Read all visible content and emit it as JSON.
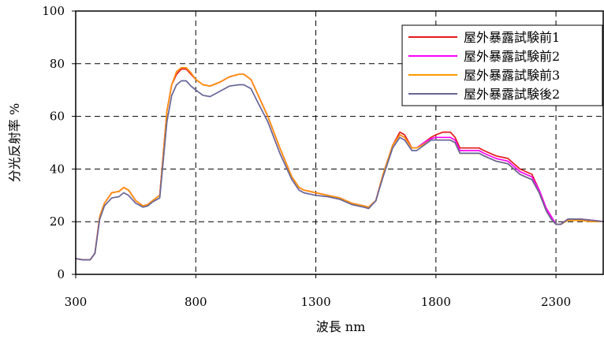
{
  "chart_data": {
    "type": "line",
    "xlabel": "波長 nm",
    "ylabel": "分光反射率 %",
    "xlim": [
      300,
      2500
    ],
    "ylim": [
      0,
      100
    ],
    "xticks": [
      300,
      800,
      1300,
      1800,
      2300
    ],
    "yticks": [
      0,
      20,
      40,
      60,
      80,
      100
    ],
    "grid": true,
    "legend_position": "top-right",
    "x": [
      300,
      330,
      360,
      380,
      400,
      420,
      450,
      480,
      500,
      520,
      550,
      580,
      600,
      620,
      650,
      680,
      700,
      720,
      740,
      760,
      780,
      800,
      830,
      860,
      900,
      940,
      980,
      1000,
      1030,
      1060,
      1100,
      1150,
      1200,
      1230,
      1250,
      1300,
      1350,
      1400,
      1450,
      1500,
      1520,
      1550,
      1580,
      1620,
      1650,
      1670,
      1700,
      1720,
      1750,
      1780,
      1800,
      1830,
      1860,
      1880,
      1900,
      1950,
      1980,
      2000,
      2050,
      2100,
      2150,
      2200,
      2230,
      2260,
      2280,
      2300,
      2320,
      2350,
      2400,
      2450,
      2500
    ],
    "series": [
      {
        "name": "屋外暴露試験前1",
        "color": "#e41a1c",
        "values": [
          6,
          5.5,
          5.5,
          8,
          22,
          27,
          31,
          31.5,
          33,
          32,
          28,
          26,
          26.5,
          28,
          30,
          62,
          72,
          76,
          78,
          78,
          76,
          74,
          72,
          71.5,
          73,
          75,
          76,
          76,
          74,
          68,
          60,
          48,
          37,
          33,
          32,
          31,
          30,
          29,
          27,
          26,
          25.5,
          28,
          38,
          49,
          54,
          53,
          48,
          48,
          50,
          52,
          53,
          54,
          54,
          52,
          48,
          48,
          48,
          47,
          45,
          44,
          40,
          38,
          32,
          25,
          22,
          19,
          19,
          21,
          21,
          20.5,
          20
        ]
      },
      {
        "name": "屋外暴露試験前2",
        "color": "#ff00ff",
        "values": [
          6,
          5.5,
          5.5,
          8,
          22,
          27,
          31,
          31.5,
          33,
          32,
          28,
          26,
          26.5,
          28,
          30,
          62,
          72,
          77,
          78.5,
          78.5,
          76.5,
          74,
          72,
          71.5,
          73,
          75,
          76,
          76,
          74,
          68,
          60,
          48,
          37,
          33,
          32,
          31,
          30,
          29,
          27,
          26,
          25.5,
          28,
          38,
          49,
          53,
          52,
          48,
          48,
          50,
          51.5,
          52,
          52,
          52,
          51,
          47,
          47,
          47,
          46,
          44,
          43,
          39,
          37,
          32,
          25,
          22,
          19,
          19,
          21,
          21,
          20.5,
          20
        ]
      },
      {
        "name": "屋外暴露試験前3",
        "color": "#ff9900",
        "values": [
          6,
          5.5,
          5.5,
          8,
          22,
          27,
          31,
          31.5,
          33,
          32,
          28,
          26,
          26.5,
          28,
          30,
          62,
          72,
          77,
          78.5,
          78.5,
          76.5,
          74,
          72,
          71.5,
          73,
          75,
          76,
          76,
          74,
          68,
          60,
          48,
          37,
          33,
          32,
          31,
          30,
          29,
          27,
          26,
          25.5,
          28,
          38,
          49,
          53,
          52,
          48,
          48,
          49.5,
          51,
          51,
          51,
          51,
          50,
          46,
          46,
          46,
          45,
          43,
          42,
          38,
          36,
          31,
          24,
          21,
          19,
          19,
          20.5,
          20.5,
          20,
          20
        ]
      },
      {
        "name": "屋外暴露試験後2",
        "color": "#666699",
        "values": [
          6,
          5.5,
          5.5,
          8,
          21,
          26,
          29,
          29.5,
          31,
          30,
          27,
          25.5,
          26,
          27.5,
          29,
          58,
          68,
          72,
          73.5,
          73.5,
          71.5,
          70,
          68,
          67.5,
          69.5,
          71.5,
          72,
          72,
          70.5,
          65,
          58,
          46,
          36,
          32,
          31,
          30,
          29.5,
          28.5,
          26.5,
          25.5,
          25,
          28,
          37,
          48,
          52,
          51,
          47,
          47,
          49,
          51,
          51,
          51,
          51,
          50,
          46,
          46,
          46,
          45,
          43,
          42,
          38,
          36,
          31,
          24,
          21,
          19,
          19,
          21,
          21,
          20.5,
          20
        ]
      }
    ]
  }
}
